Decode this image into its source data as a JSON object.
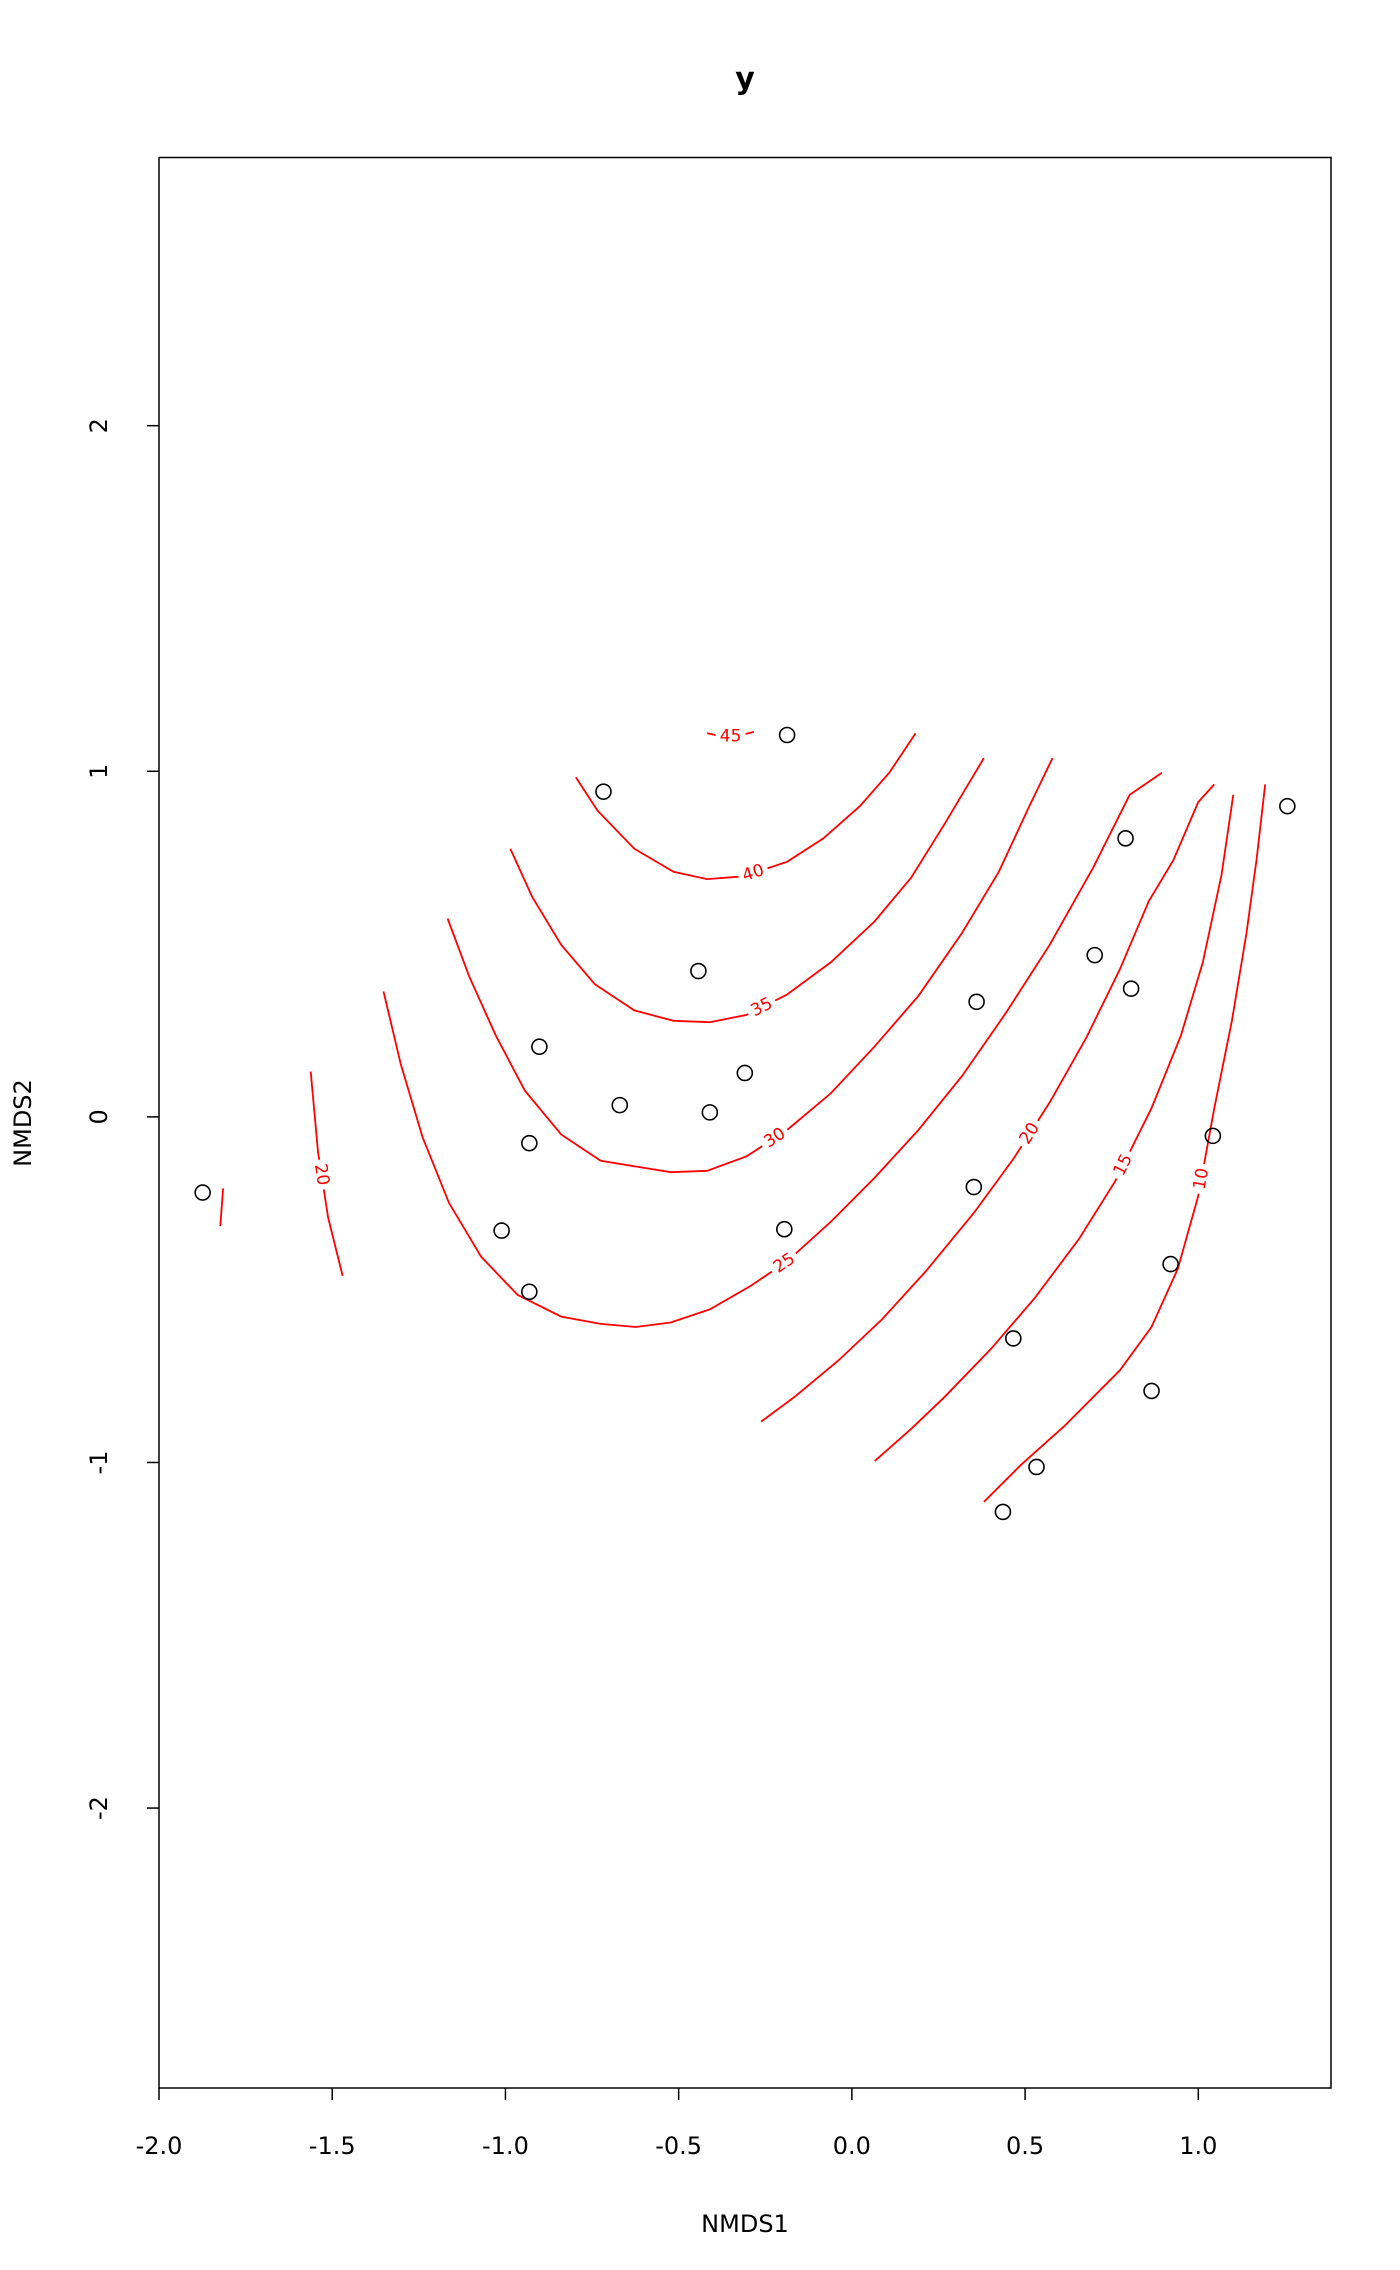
{
  "chart_data": {
    "type": "contour_scatter",
    "title": "y",
    "x_label": "NMDS1",
    "y_label": "NMDS2",
    "xlim": [
      -2,
      1.383
    ],
    "ylim": [
      -2.81,
      2.776
    ],
    "xticks": [
      {
        "value": -2,
        "label": "-2.0"
      },
      -1.5,
      {
        "value": -1,
        "label": "-1.0"
      },
      -0.5,
      {
        "value": 0,
        "label": "0.0"
      },
      0.5,
      {
        "value": 1,
        "label": "1.0"
      }
    ],
    "yticks": [
      -2,
      -1,
      0,
      1,
      2
    ],
    "point_color": "#000000",
    "contour_color": "#ff0000",
    "points": {
      "x": [
        -1.874,
        -0.717,
        -0.187,
        -0.443,
        0.36,
        0.701,
        0.79,
        0.806,
        1.257,
        -0.902,
        -0.67,
        -0.41,
        -0.309,
        -0.931,
        -1.011,
        -0.931,
        -0.195,
        0.352,
        1.042,
        0.92,
        0.466,
        0.865,
        0.533,
        0.436
      ],
      "y": [
        -0.219,
        0.941,
        1.105,
        0.422,
        0.333,
        0.468,
        0.806,
        0.371,
        0.899,
        0.203,
        0.034,
        0.013,
        0.127,
        -0.076,
        -0.329,
        -0.506,
        -0.325,
        -0.203,
        -0.055,
        -0.426,
        -0.641,
        -0.793,
        -1.013,
        -1.143
      ]
    },
    "contours": [
      {
        "level": 45,
        "labeled": true,
        "x": [
          -0.418,
          -0.376,
          -0.334,
          -0.283
        ],
        "y": [
          1.11,
          1.101,
          1.101,
          1.114
        ]
      },
      {
        "level": 40,
        "labeled": true,
        "x": [
          -0.797,
          -0.734,
          -0.628,
          -0.515,
          -0.418,
          -0.313,
          -0.187,
          -0.082,
          0.023,
          0.108,
          0.184
        ],
        "y": [
          0.983,
          0.886,
          0.776,
          0.709,
          0.688,
          0.696,
          0.738,
          0.806,
          0.899,
          0.996,
          1.11
        ]
      },
      {
        "level": 35,
        "labeled": true,
        "x": [
          -0.986,
          -0.923,
          -0.839,
          -0.742,
          -0.628,
          -0.515,
          -0.41,
          -0.304,
          -0.187,
          -0.061,
          0.065,
          0.171,
          0.268,
          0.331,
          0.381
        ],
        "y": [
          0.776,
          0.637,
          0.498,
          0.384,
          0.308,
          0.278,
          0.274,
          0.295,
          0.354,
          0.447,
          0.565,
          0.692,
          0.848,
          0.954,
          1.038
        ]
      },
      {
        "level": 30,
        "labeled": true,
        "x": [
          -1.167,
          -1.104,
          -1.028,
          -0.944,
          -0.839,
          -0.725,
          -0.523,
          -0.418,
          -0.304,
          -0.187,
          -0.061,
          0.065,
          0.192,
          0.318,
          0.424,
          0.508,
          0.579
        ],
        "y": [
          0.574,
          0.405,
          0.236,
          0.076,
          -0.051,
          -0.127,
          -0.16,
          -0.156,
          -0.114,
          -0.038,
          0.068,
          0.203,
          0.35,
          0.532,
          0.709,
          0.89,
          1.038
        ]
      },
      {
        "level": 25,
        "labeled": true,
        "x": [
          -1.352,
          -1.302,
          -1.239,
          -1.163,
          -1.07,
          -0.965,
          -0.839,
          -0.725,
          -0.624,
          -0.523,
          -0.41,
          -0.292,
          -0.187,
          -0.061,
          0.065,
          0.192,
          0.318,
          0.444,
          0.571,
          0.697,
          0.802,
          0.895
        ],
        "y": [
          0.363,
          0.152,
          -0.059,
          -0.249,
          -0.405,
          -0.515,
          -0.578,
          -0.599,
          -0.608,
          -0.595,
          -0.557,
          -0.489,
          -0.418,
          -0.304,
          -0.177,
          -0.038,
          0.118,
          0.3,
          0.498,
          0.722,
          0.932,
          0.996
        ]
      },
      {
        "level": 20,
        "labeled": true,
        "x": [
          -0.262,
          -0.165,
          -0.039,
          0.087,
          0.213,
          0.352,
          0.466,
          0.571,
          0.676,
          0.773,
          0.857,
          0.928,
          1.0,
          1.046
        ],
        "y": [
          -0.882,
          -0.81,
          -0.705,
          -0.586,
          -0.447,
          -0.278,
          -0.122,
          0.042,
          0.228,
          0.426,
          0.624,
          0.743,
          0.911,
          0.962
        ]
      },
      {
        "level": 15,
        "labeled": true,
        "x": [
          0.066,
          0.171,
          0.268,
          0.402,
          0.529,
          0.655,
          0.76,
          0.865,
          0.95,
          1.013,
          1.067,
          1.101
        ],
        "y": [
          -0.996,
          -0.903,
          -0.81,
          -0.671,
          -0.523,
          -0.354,
          -0.186,
          0.025,
          0.236,
          0.447,
          0.7,
          0.932
        ]
      },
      {
        "level": 10,
        "labeled": true,
        "x": [
          0.381,
          0.487,
          0.613,
          0.773,
          0.865,
          0.941,
          1.0,
          1.046,
          1.097,
          1.139,
          1.168,
          1.193
        ],
        "y": [
          -1.114,
          -1.008,
          -0.895,
          -0.734,
          -0.608,
          -0.439,
          -0.228,
          0.025,
          0.278,
          0.532,
          0.743,
          0.962
        ]
      },
      {
        "level": 20,
        "labeled": true,
        "x": [
          -1.562,
          -1.541,
          -1.512,
          -1.47
        ],
        "y": [
          0.131,
          -0.101,
          -0.291,
          -0.46
        ]
      },
      {
        "level": 20,
        "labeled": false,
        "x": [
          -1.815,
          -1.819,
          -1.823
        ],
        "y": [
          -0.207,
          -0.262,
          -0.316
        ]
      }
    ]
  }
}
